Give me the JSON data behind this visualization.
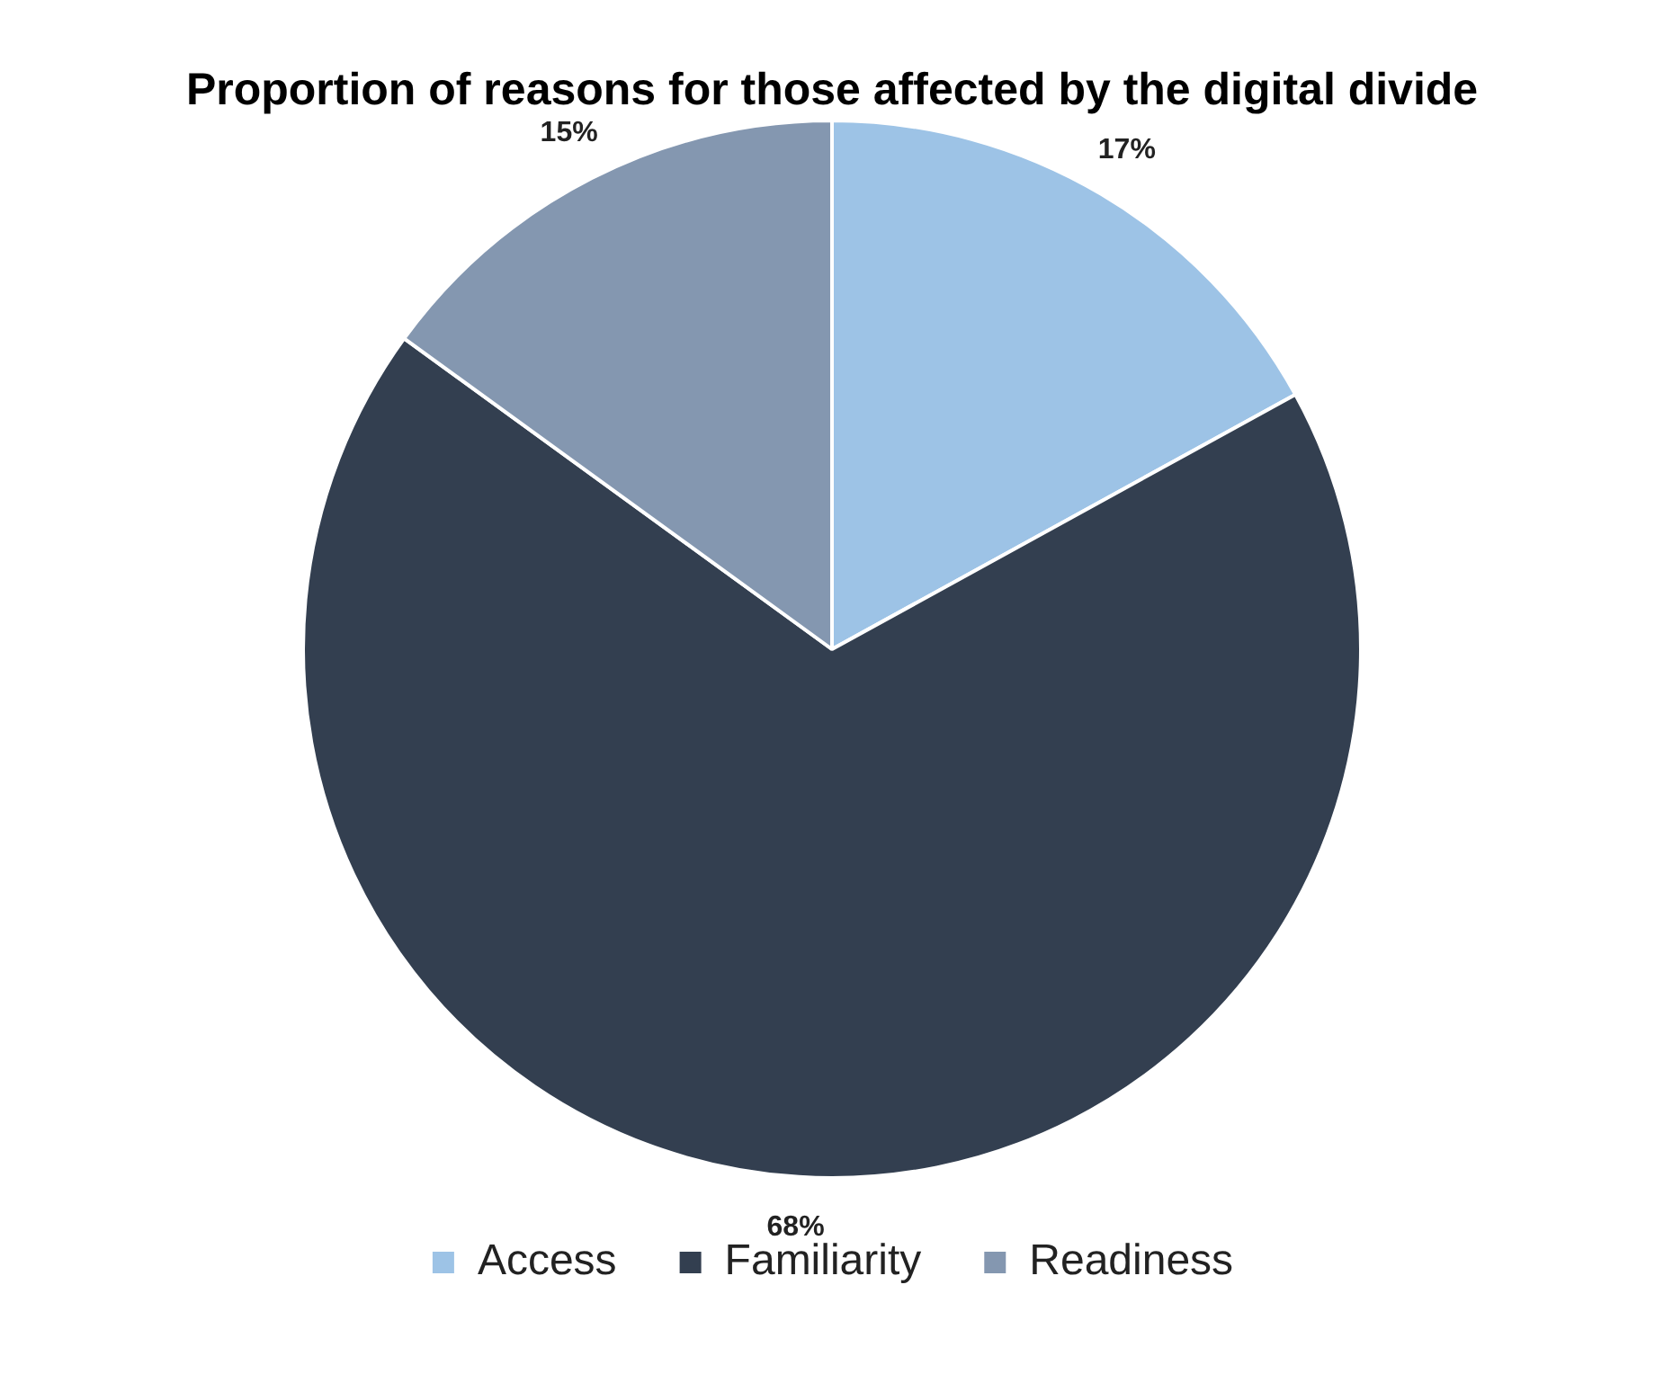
{
  "chart_data": {
    "type": "pie",
    "title": "Proportion of reasons for those affected by the digital divide",
    "categories": [
      "Access",
      "Familiarity",
      "Readiness"
    ],
    "values": [
      17,
      68,
      15
    ],
    "colors": [
      "#9dc3e6",
      "#333f50",
      "#8497b0"
    ],
    "value_labels": [
      "17%",
      "68%",
      "15%"
    ],
    "legend": "bottom"
  }
}
